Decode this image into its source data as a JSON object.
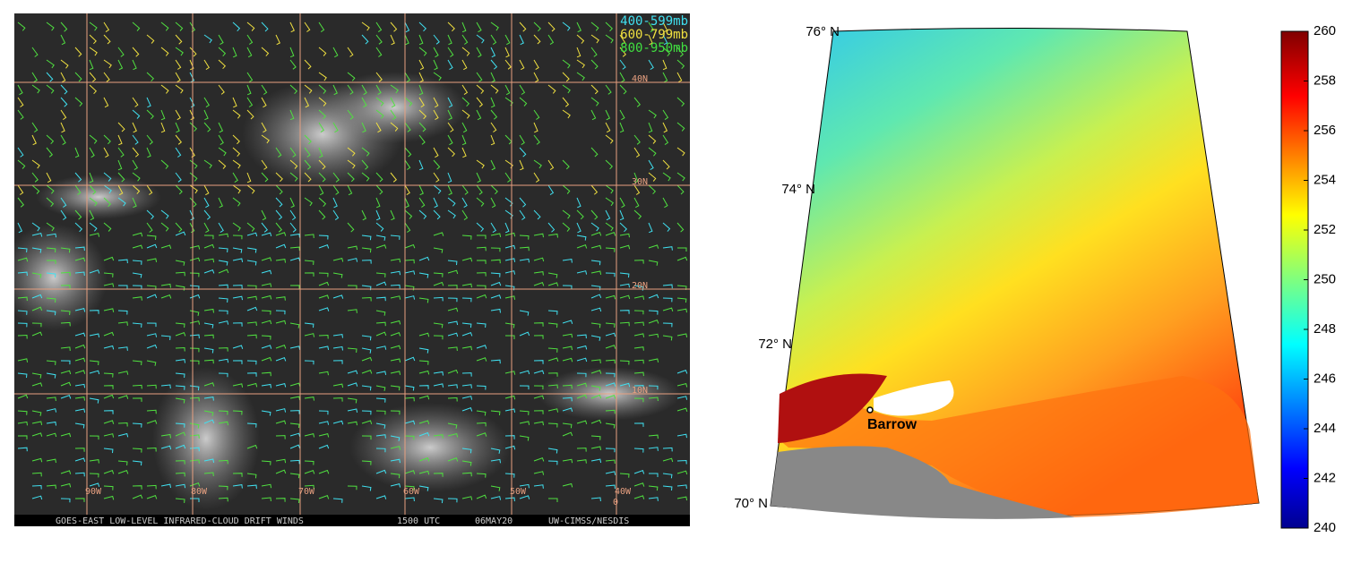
{
  "left_map": {
    "legend": [
      "400-599mb",
      "600-799mb",
      "800-950mb"
    ],
    "lat_labels": [
      "40N",
      "30N",
      "20N",
      "10N"
    ],
    "lon_labels": [
      "90W",
      "80W",
      "70W",
      "60W",
      "50W",
      "40W"
    ],
    "equator_label": "0",
    "footer": [
      "GOES-EAST LOW-LEVEL INFRARED-CLOUD DRIFT WINDS",
      "1500 UTC",
      "06MAY20",
      "UW-CIMSS/NESDIS"
    ]
  },
  "right_map": {
    "lat_labels": [
      "76° N",
      "74° N",
      "72° N",
      "70° N"
    ],
    "place": "Barrow",
    "colorbar": {
      "lim": [
        240,
        260
      ],
      "ticks": [
        240,
        242,
        244,
        246,
        248,
        250,
        252,
        254,
        256,
        258,
        260
      ]
    }
  }
}
